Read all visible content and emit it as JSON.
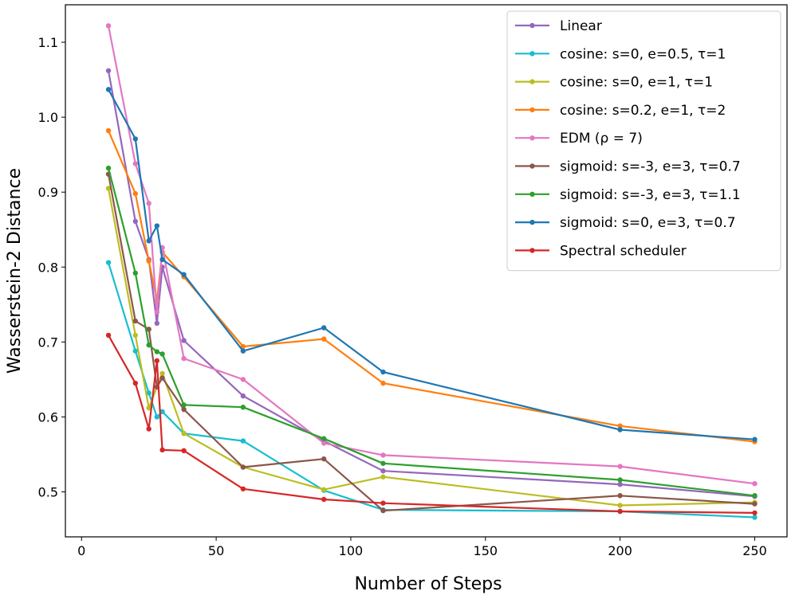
{
  "chart_data": {
    "type": "line",
    "title": "",
    "xlabel": "Number of Steps",
    "ylabel": "Wasserstein-2 Distance",
    "xlim": [
      -6,
      262
    ],
    "ylim": [
      0.44,
      1.15
    ],
    "xticks": [
      0,
      50,
      100,
      150,
      200,
      250
    ],
    "xtick_labels": [
      "0",
      "50",
      "100",
      "150",
      "200",
      "250"
    ],
    "yticks": [
      0.5,
      0.6,
      0.7,
      0.8,
      0.9,
      1.0,
      1.1
    ],
    "ytick_labels": [
      "0.5",
      "0.6",
      "0.7",
      "0.8",
      "0.9",
      "1.0",
      "1.1"
    ],
    "grid": false,
    "legend_position": "top-right",
    "x": [
      10,
      20,
      25,
      28,
      30,
      38,
      60,
      90,
      112,
      200,
      250
    ],
    "series": [
      {
        "name": "Linear",
        "color": "#9467bd",
        "values": [
          1.062,
          0.861,
          0.81,
          0.725,
          0.8,
          0.702,
          0.628,
          0.568,
          0.528,
          0.51,
          0.494
        ]
      },
      {
        "name": "cosine: s=0, e=0.5, τ=1",
        "color": "#17becf",
        "values": [
          0.806,
          0.688,
          0.632,
          0.6,
          0.607,
          0.578,
          0.568,
          0.502,
          0.476,
          0.474,
          0.466
        ]
      },
      {
        "name": "cosine: s=0, e=1, τ=1",
        "color": "#bcbd22",
        "values": [
          0.905,
          0.709,
          0.612,
          0.64,
          0.658,
          0.578,
          0.533,
          0.503,
          0.52,
          0.482,
          0.486
        ]
      },
      {
        "name": "cosine: s=0.2, e=1, τ=2",
        "color": "#ff7f0e",
        "values": [
          0.982,
          0.898,
          0.808,
          0.755,
          0.82,
          0.787,
          0.694,
          0.704,
          0.645,
          0.588,
          0.567
        ]
      },
      {
        "name": "EDM (ρ = 7)",
        "color": "#e377c2",
        "values": [
          1.122,
          0.938,
          0.885,
          0.74,
          0.826,
          0.678,
          0.65,
          0.565,
          0.549,
          0.534,
          0.511
        ]
      },
      {
        "name": "sigmoid: s=-3, e=3, τ=0.7",
        "color": "#8c564b",
        "values": [
          0.924,
          0.728,
          0.717,
          0.64,
          0.652,
          0.61,
          0.533,
          0.544,
          0.475,
          0.495,
          0.484
        ]
      },
      {
        "name": "sigmoid: s=-3, e=3, τ=1.1",
        "color": "#2ca02c",
        "values": [
          0.932,
          0.792,
          0.696,
          0.687,
          0.684,
          0.616,
          0.613,
          0.571,
          0.538,
          0.516,
          0.495
        ]
      },
      {
        "name": "sigmoid: s=0, e=3, τ=0.7",
        "color": "#1f77b4",
        "values": [
          1.037,
          0.971,
          0.835,
          0.855,
          0.81,
          0.79,
          0.688,
          0.719,
          0.66,
          0.583,
          0.57
        ]
      },
      {
        "name": "Spectral scheduler",
        "color": "#d62728",
        "values": [
          0.709,
          0.645,
          0.584,
          0.675,
          0.556,
          0.555,
          0.504,
          0.49,
          0.485,
          0.474,
          0.472
        ]
      }
    ]
  }
}
